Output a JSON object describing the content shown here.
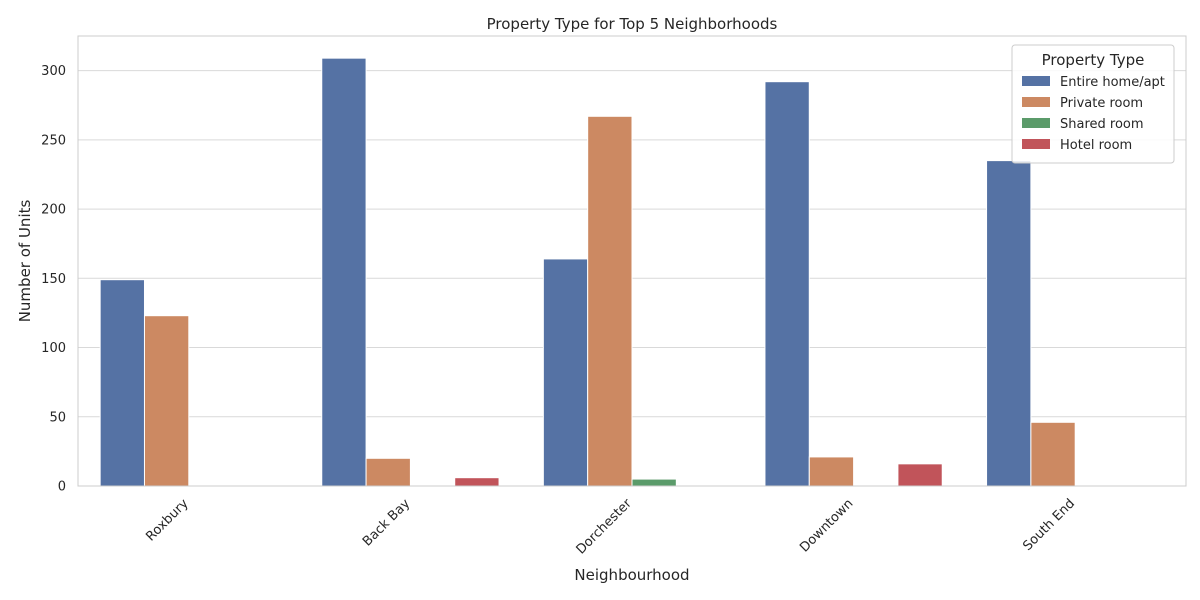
{
  "chart_data": {
    "type": "bar",
    "title": "Property Type for Top 5 Neighborhoods",
    "xlabel": "Neighbourhood",
    "ylabel": "Number of Units",
    "categories": [
      "Roxbury",
      "Back Bay",
      "Dorchester",
      "Downtown",
      "South End"
    ],
    "series": [
      {
        "name": "Entire home/apt",
        "color": "#5572a4",
        "values": [
          149,
          309,
          164,
          292,
          235
        ]
      },
      {
        "name": "Private room",
        "color": "#cc8962",
        "values": [
          123,
          20,
          267,
          21,
          46
        ]
      },
      {
        "name": "Shared room",
        "color": "#5b9b6a",
        "values": [
          0,
          0,
          5,
          0,
          0
        ]
      },
      {
        "name": "Hotel room",
        "color": "#c1545a",
        "values": [
          0,
          6,
          0,
          16,
          0
        ]
      }
    ],
    "yticks": [
      0,
      50,
      100,
      150,
      200,
      250,
      300
    ],
    "ylim": [
      0,
      325
    ],
    "grid": true,
    "legend": {
      "title": "Property Type",
      "position": "top-right"
    }
  }
}
